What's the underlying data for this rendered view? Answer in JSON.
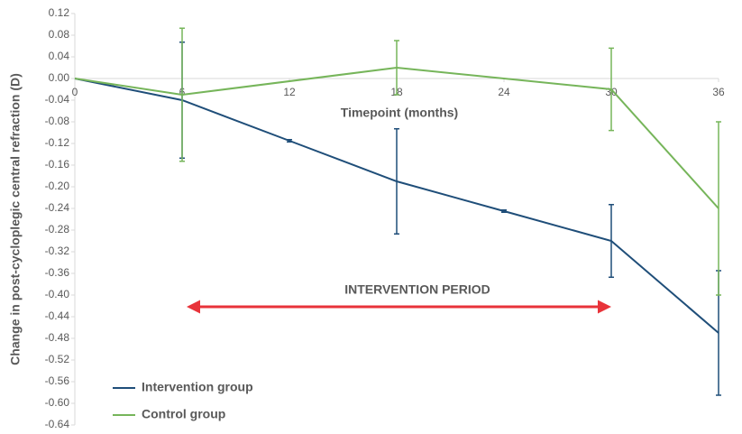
{
  "chart_data": {
    "type": "line",
    "xlabel": "Timepoint (months)",
    "ylabel": "Change in post-cycloplegic central refraction (D)",
    "annotation": "INTERVENTION PERIOD",
    "xlim": [
      0,
      36
    ],
    "xticks": [
      0,
      6,
      12,
      18,
      24,
      30,
      36
    ],
    "ylim": [
      -0.64,
      0.12
    ],
    "yticks": [
      0.12,
      0.08,
      0.04,
      {
        "value": 0,
        "label": "0.00"
      },
      -0.04,
      -0.08,
      -0.12,
      -0.16,
      {
        "value": -0.2,
        "label": "-0.20"
      },
      -0.24,
      -0.28,
      -0.32,
      -0.36,
      {
        "value": -0.4,
        "label": "-0.40"
      },
      -0.44,
      -0.48,
      -0.52,
      -0.56,
      {
        "value": -0.6,
        "label": "-0.60"
      },
      -0.64
    ],
    "legend": "lower left",
    "series": [
      {
        "name": "Intervention group",
        "color": "#1f4e79",
        "x": [
          0,
          6,
          12,
          18,
          24,
          30,
          36
        ],
        "values": [
          0,
          -0.04,
          -0.115,
          -0.19,
          -0.245,
          -0.3,
          -0.47
        ],
        "errors": [
          null,
          0.107,
          0.002,
          0.097,
          0.002,
          0.067,
          0.115
        ]
      },
      {
        "name": "Control group",
        "color": "#76b55a",
        "x": [
          0,
          6,
          18,
          30,
          36
        ],
        "values": [
          0,
          -0.03,
          0.02,
          -0.02,
          -0.24
        ],
        "errors": [
          null,
          0.123,
          0.05,
          0.076,
          0.16
        ]
      }
    ]
  }
}
